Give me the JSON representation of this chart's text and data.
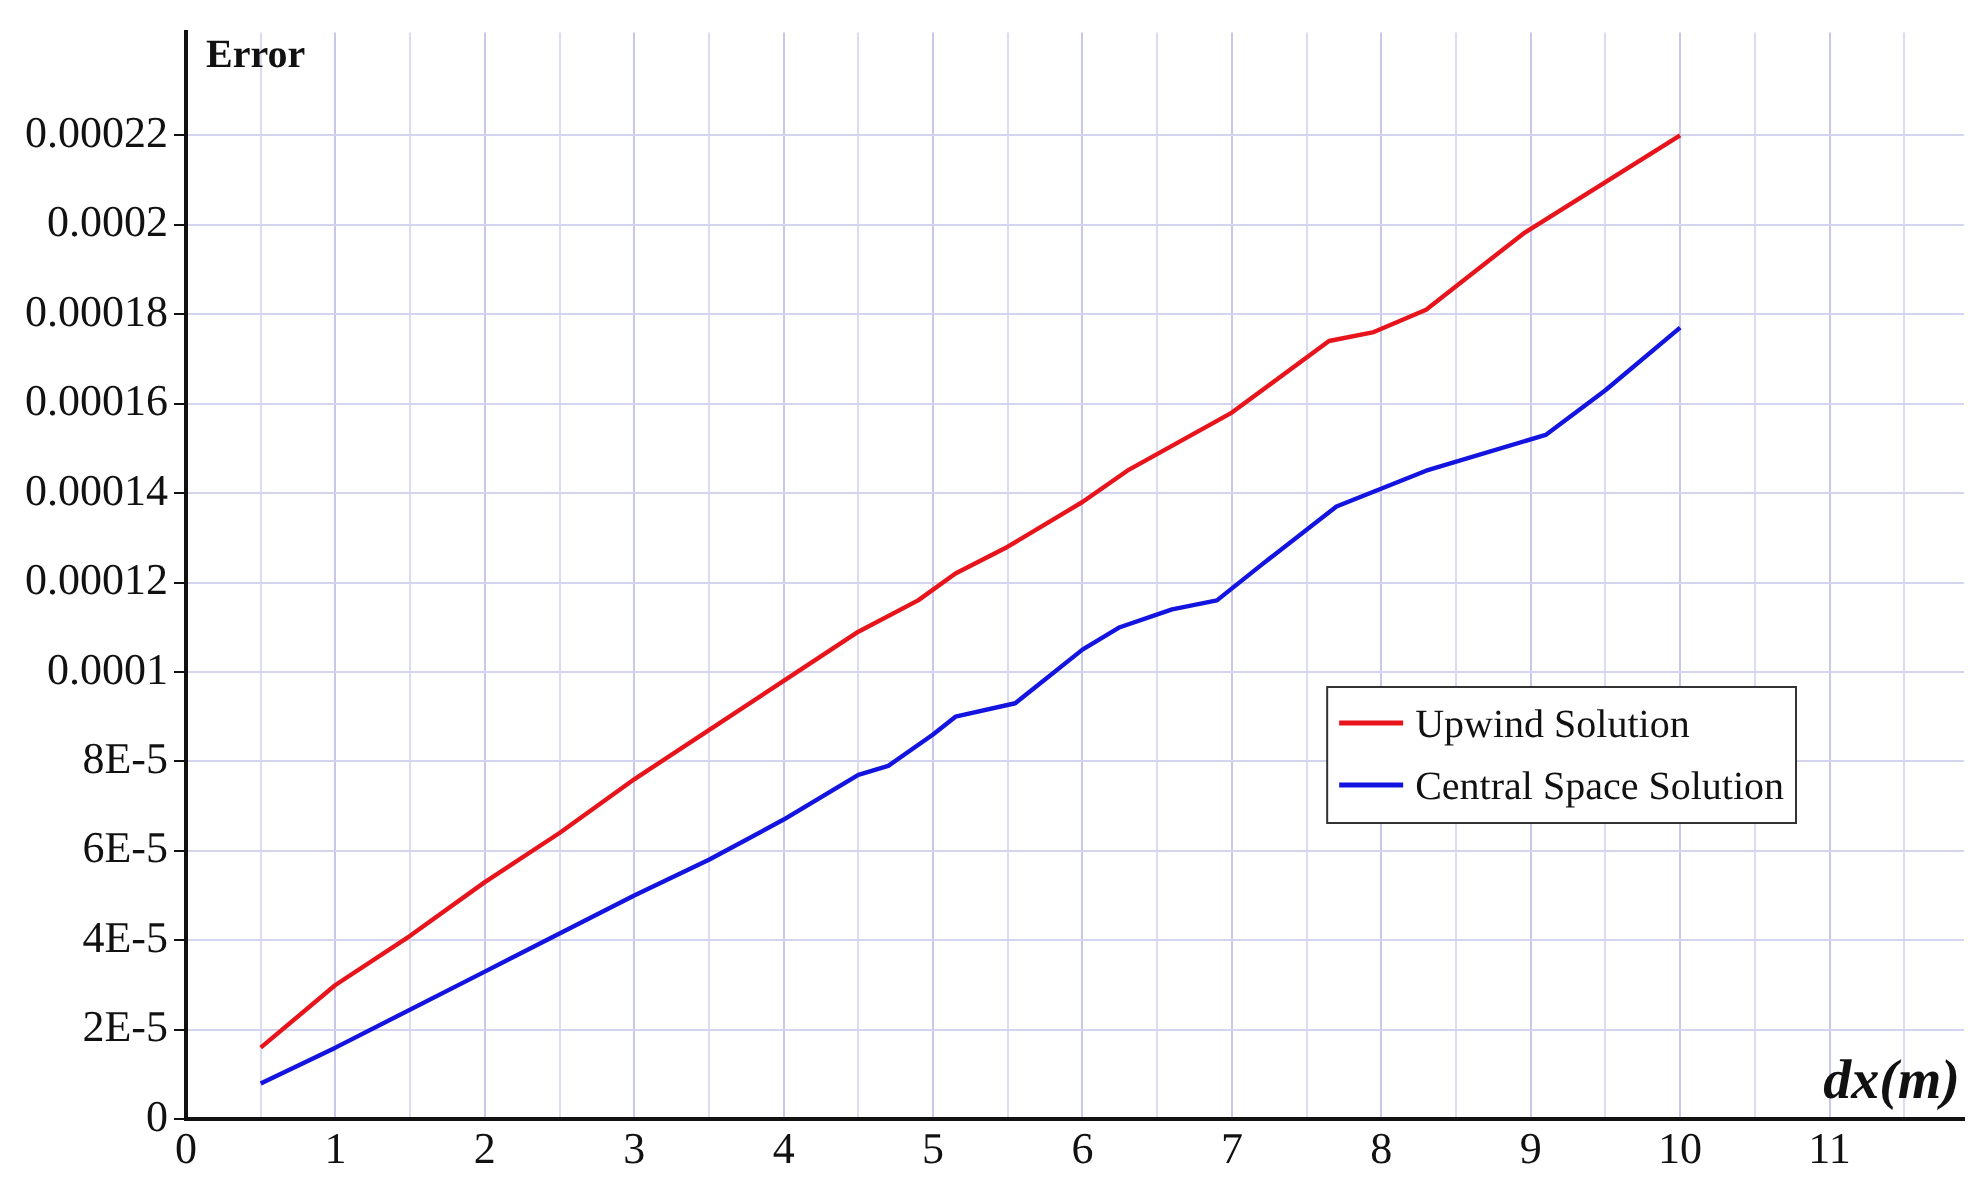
{
  "chart_data": {
    "type": "line",
    "xlabel": "dx(m)",
    "ylabel": "Error",
    "xlim": [
      0,
      11.9
    ],
    "ylim": [
      0,
      0.000243
    ],
    "xticks": [
      0,
      {
        "value": 0.5,
        "label": null
      },
      1,
      {
        "value": 1.5,
        "label": null
      },
      2,
      {
        "value": 2.5,
        "label": null
      },
      3,
      {
        "value": 3.5,
        "label": null
      },
      4,
      {
        "value": 4.5,
        "label": null
      },
      5,
      {
        "value": 5.5,
        "label": null
      },
      6,
      {
        "value": 6.5,
        "label": null
      },
      7,
      {
        "value": 7.5,
        "label": null
      },
      8,
      {
        "value": 8.5,
        "label": null
      },
      9,
      {
        "value": 9.5,
        "label": null
      },
      10,
      {
        "value": 10.5,
        "label": null
      },
      11,
      {
        "value": 11.5,
        "label": null
      }
    ],
    "yticks": [
      0,
      {
        "value": 2e-05,
        "label": "2E-5"
      },
      {
        "value": 4e-05,
        "label": "4E-5"
      },
      {
        "value": 6e-05,
        "label": "6E-5"
      },
      {
        "value": 8e-05,
        "label": "8E-5"
      },
      0.0001,
      0.00012,
      0.00014,
      0.00016,
      0.00018,
      0.0002,
      0.00022
    ],
    "grid": true,
    "legend": "right",
    "marker": "none",
    "line_style": "solid",
    "series": [
      {
        "name": "Upwind Solution",
        "color": "#e8141c",
        "x": [
          0.5,
          1,
          1.5,
          2,
          2.5,
          3,
          3.5,
          4,
          4.5,
          4.9,
          5.15,
          5.5,
          6,
          6.3,
          7,
          7.65,
          7.95,
          8.3,
          8.95,
          10
        ],
        "values": [
          1.6e-05,
          3e-05,
          4.1e-05,
          5.3e-05,
          6.4e-05,
          7.6e-05,
          8.7e-05,
          9.8e-05,
          0.000109,
          0.000116,
          0.000122,
          0.000128,
          0.000138,
          0.000145,
          0.000158,
          0.000174,
          0.000176,
          0.000181,
          0.000198,
          0.00022
        ]
      },
      {
        "name": "Central Space Solution",
        "color": "#1414e0",
        "x": [
          0.5,
          1,
          2,
          3,
          3.5,
          4,
          4.5,
          4.7,
          5,
          5.15,
          5.55,
          6,
          6.25,
          6.6,
          6.9,
          7.2,
          7.7,
          8.3,
          9.1,
          9.5,
          10
        ],
        "values": [
          8e-06,
          1.6e-05,
          3.3e-05,
          5e-05,
          5.8e-05,
          6.7e-05,
          7.7e-05,
          7.9e-05,
          8.6e-05,
          9e-05,
          9.3e-05,
          0.000105,
          0.00011,
          0.000114,
          0.000116,
          0.000124,
          0.000137,
          0.000145,
          0.000153,
          0.000163,
          0.000177
        ]
      }
    ]
  }
}
